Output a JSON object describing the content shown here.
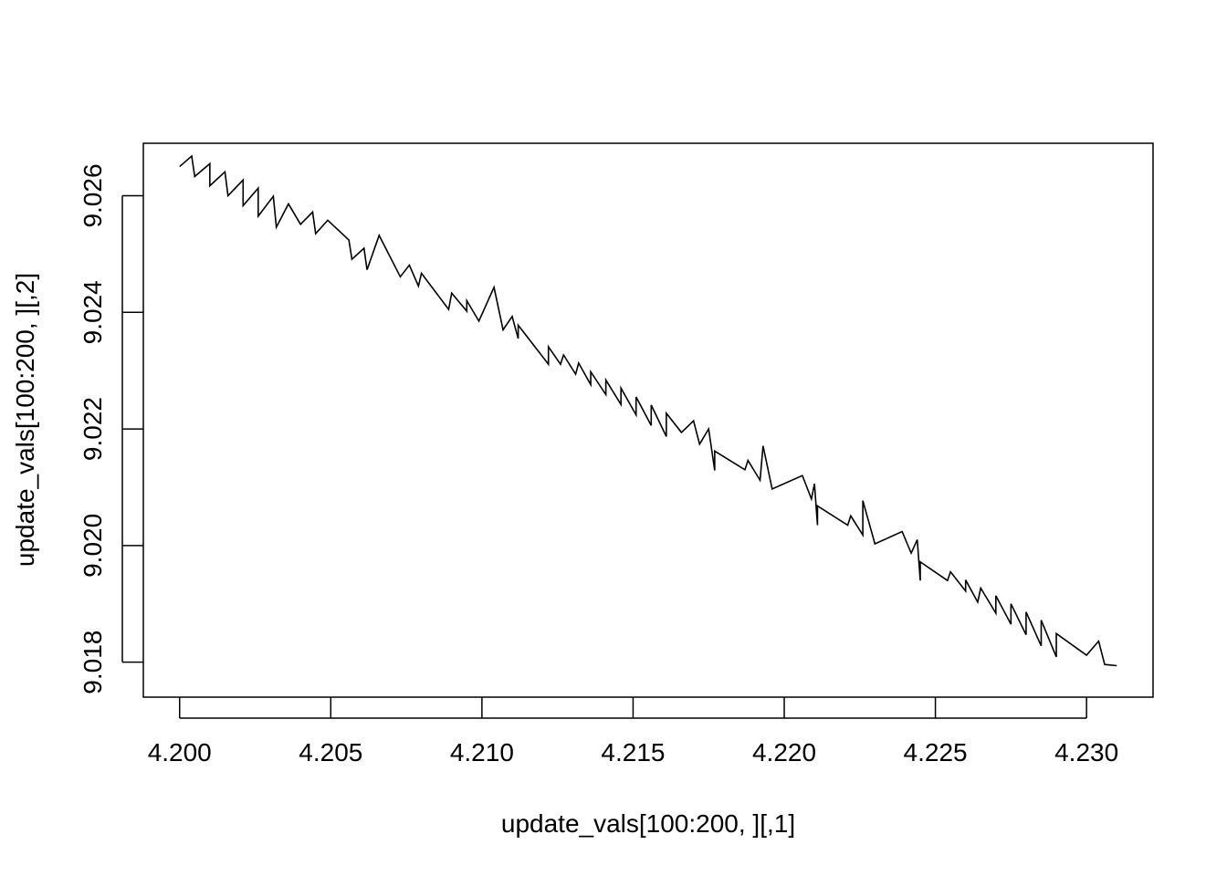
{
  "chart_data": {
    "type": "line",
    "title": "",
    "xlabel": "update_vals[100:200, ][,1]",
    "ylabel": "update_vals[100:200, ][,2]",
    "xlim": [
      4.1988,
      4.2322
    ],
    "ylim": [
      9.0174,
      9.0269
    ],
    "x_ticks": [
      4.2,
      4.205,
      4.21,
      4.215,
      4.22,
      4.225,
      4.23
    ],
    "x_tick_labels": [
      "4.200",
      "4.205",
      "4.210",
      "4.215",
      "4.220",
      "4.225",
      "4.230"
    ],
    "y_ticks": [
      9.018,
      9.02,
      9.022,
      9.024,
      9.026
    ],
    "y_tick_labels": [
      "9.018",
      "9.020",
      "9.022",
      "9.024",
      "9.026"
    ],
    "grid": false,
    "legend": "none",
    "series": [
      {
        "x": [
          4.2,
          4.2004,
          4.2005,
          4.201,
          4.201,
          4.2015,
          4.2016,
          4.2021,
          4.2021,
          4.2026,
          4.2026,
          4.2031,
          4.2032,
          4.2036,
          4.204,
          4.2044,
          4.2045,
          4.2049,
          4.2056,
          4.2057,
          4.2061,
          4.2062,
          4.2066,
          4.2073,
          4.2076,
          4.2079,
          4.208,
          4.2089,
          4.209,
          4.2095,
          4.2095,
          4.2099,
          4.2104,
          4.2107,
          4.211,
          4.2112,
          4.2112,
          4.2122,
          4.2122,
          4.2126,
          4.2127,
          4.2131,
          4.2132,
          4.2136,
          4.2136,
          4.2141,
          4.2141,
          4.2146,
          4.2146,
          4.2151,
          4.2151,
          4.2156,
          4.2156,
          4.2161,
          4.2161,
          4.2166,
          4.217,
          4.2172,
          4.2175,
          4.2177,
          4.2177,
          4.2187,
          4.2188,
          4.2192,
          4.2193,
          4.2196,
          4.2206,
          4.2209,
          4.221,
          4.2211,
          4.2211,
          4.2221,
          4.2222,
          4.2226,
          4.2226,
          4.223,
          4.2239,
          4.2242,
          4.2244,
          4.2245,
          4.2245,
          4.2254,
          4.2255,
          4.226,
          4.226,
          4.2264,
          4.2265,
          4.227,
          4.227,
          4.2275,
          4.2275,
          4.228,
          4.228,
          4.2285,
          4.2285,
          4.229,
          4.229,
          4.23,
          4.2304,
          4.2306,
          4.231
        ],
        "y": [
          9.0265,
          9.02668,
          9.02633,
          9.02655,
          9.02617,
          9.02641,
          9.026,
          9.02627,
          9.02583,
          9.02613,
          9.02565,
          9.02599,
          9.02546,
          9.02586,
          9.02551,
          9.02572,
          9.02535,
          9.02558,
          9.02524,
          9.02491,
          9.0251,
          9.02473,
          9.02532,
          9.02461,
          9.02481,
          9.02445,
          9.02467,
          9.02405,
          9.02433,
          9.02402,
          9.0242,
          9.02385,
          9.02443,
          9.0237,
          9.02393,
          9.02355,
          9.02378,
          9.02311,
          9.02341,
          9.02311,
          9.02327,
          9.02294,
          9.02313,
          9.02276,
          9.02298,
          9.02259,
          9.02284,
          9.02242,
          9.0227,
          9.02224,
          9.02255,
          9.02206,
          9.02241,
          9.02187,
          9.02227,
          9.02194,
          9.02214,
          9.02174,
          9.022,
          9.02129,
          9.02162,
          9.0213,
          9.02146,
          9.02112,
          9.02171,
          9.02097,
          9.0212,
          9.0208,
          9.02106,
          9.02035,
          9.02068,
          9.02035,
          9.02051,
          9.02018,
          9.02077,
          9.02003,
          9.02024,
          9.01987,
          9.0201,
          9.0194,
          9.01972,
          9.0194,
          9.01955,
          9.01922,
          9.01941,
          9.01903,
          9.01927,
          9.01884,
          9.01914,
          9.01865,
          9.019,
          9.01847,
          9.01886,
          9.01828,
          9.01872,
          9.01809,
          9.01849,
          9.01812,
          9.01836,
          9.01796,
          9.01794
        ]
      }
    ]
  }
}
